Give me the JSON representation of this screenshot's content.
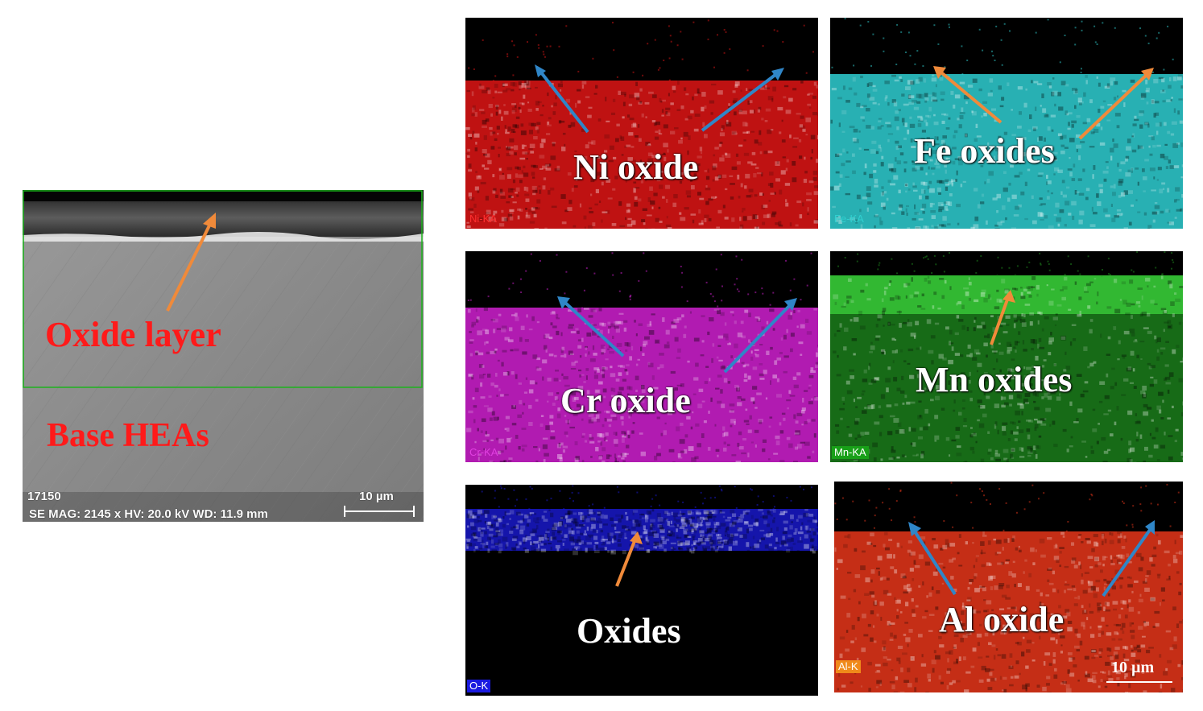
{
  "sem": {
    "label_oxide_layer": "Oxide layer",
    "label_base": "Base HEAs",
    "info_id": "17150",
    "info_params": "SE  MAG: 2145 x  HV: 20.0 kV  WD: 11.9 mm",
    "scale_label": "10 µm"
  },
  "maps": [
    {
      "element_tag": "Ni-KA",
      "label": "Ni oxide",
      "color": "#e01515",
      "tag_color": "#ff3030",
      "arrow_color": "#2f86c8"
    },
    {
      "element_tag": "Fe-KA",
      "label": "Fe oxides",
      "color": "#2fcfd2",
      "tag_color": "#30d0d0",
      "arrow_color": "#f08a3a"
    },
    {
      "element_tag": "Cr-KA",
      "label": "Cr oxide",
      "color": "#d020d0",
      "tag_color": "#e040e0",
      "arrow_color": "#2f86c8"
    },
    {
      "element_tag": "Mn-KA",
      "label": "Mn oxides",
      "color": "#1f8f1f",
      "tag_color": "#ffffff",
      "arrow_color": "#f08a3a"
    },
    {
      "element_tag": "O-K",
      "label": "Oxides",
      "color": "#1a1ad6",
      "tag_color": "#ffffff",
      "arrow_color": "#f08a3a"
    },
    {
      "element_tag": "Al-K",
      "label": "Al oxide",
      "color": "#e8361a",
      "tag_color": "#ffffff",
      "arrow_color": "#2f86c8",
      "scale_label": "10 µm"
    }
  ]
}
